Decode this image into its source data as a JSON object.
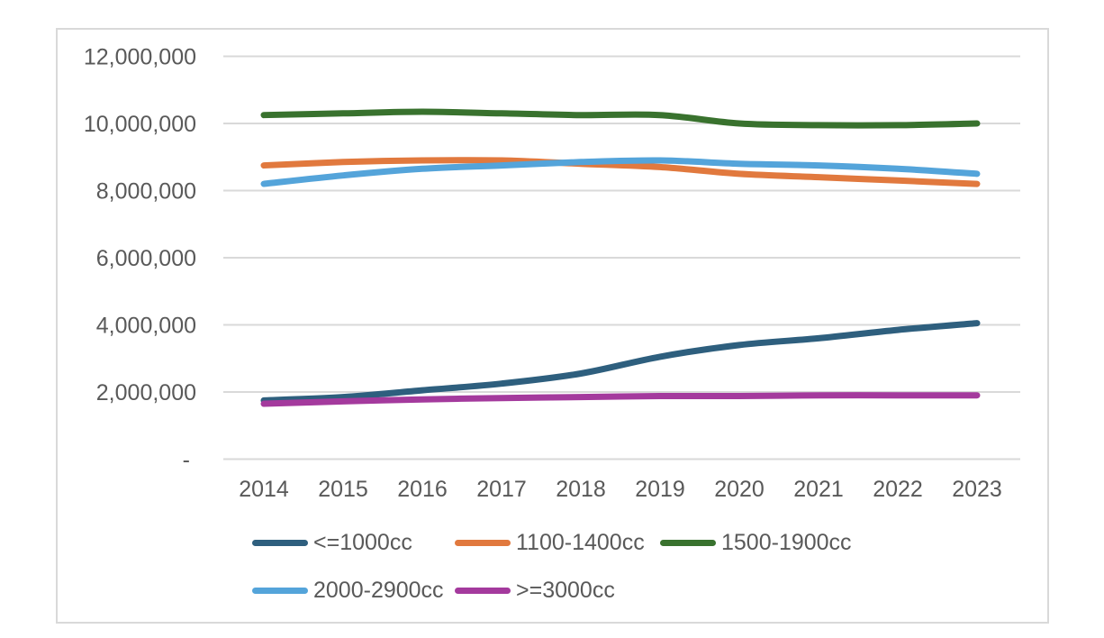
{
  "chart_data": {
    "type": "line",
    "title": "",
    "xlabel": "",
    "ylabel": "",
    "smooth": true,
    "grid": true,
    "legend_position": "bottom",
    "categories": [
      "2014",
      "2015",
      "2016",
      "2017",
      "2018",
      "2019",
      "2020",
      "2021",
      "2022",
      "2023"
    ],
    "series": [
      {
        "name": "<=1000cc",
        "color": "#2E5F7E",
        "values": [
          1750000,
          1850000,
          2050000,
          2250000,
          2550000,
          3050000,
          3400000,
          3600000,
          3850000,
          4050000
        ]
      },
      {
        "name": "1100-1400cc",
        "color": "#E1793E",
        "values": [
          8750000,
          8850000,
          8900000,
          8900000,
          8800000,
          8700000,
          8500000,
          8400000,
          8300000,
          8200000
        ]
      },
      {
        "name": "1500-1900cc",
        "color": "#39722E",
        "values": [
          10250000,
          10300000,
          10350000,
          10300000,
          10250000,
          10250000,
          10000000,
          9950000,
          9950000,
          10000000
        ]
      },
      {
        "name": "2000-2900cc",
        "color": "#54A4DA",
        "values": [
          8200000,
          8450000,
          8650000,
          8750000,
          8850000,
          8900000,
          8800000,
          8750000,
          8650000,
          8500000
        ]
      },
      {
        "name": ">=3000cc",
        "color": "#A43A9D",
        "values": [
          1650000,
          1720000,
          1780000,
          1820000,
          1850000,
          1880000,
          1880000,
          1900000,
          1900000,
          1900000
        ]
      }
    ],
    "y_axis": {
      "min": 0,
      "max": 12000000,
      "step": 2000000,
      "tick_labels_top_to_bottom": [
        "12,000,000",
        "10,000,000",
        "8,000,000",
        "6,000,000",
        "4,000,000",
        "2,000,000",
        "-"
      ]
    },
    "legend_rows": [
      [
        "<=1000cc",
        "1100-1400cc",
        "1500-1900cc"
      ],
      [
        "2000-2900cc",
        ">=3000cc"
      ]
    ]
  },
  "styles": {
    "text_color": "#595959",
    "gridline_color": "#D9D9D9",
    "frame_border_color": "#D9D9D9",
    "background_color": "#FFFFFF"
  }
}
